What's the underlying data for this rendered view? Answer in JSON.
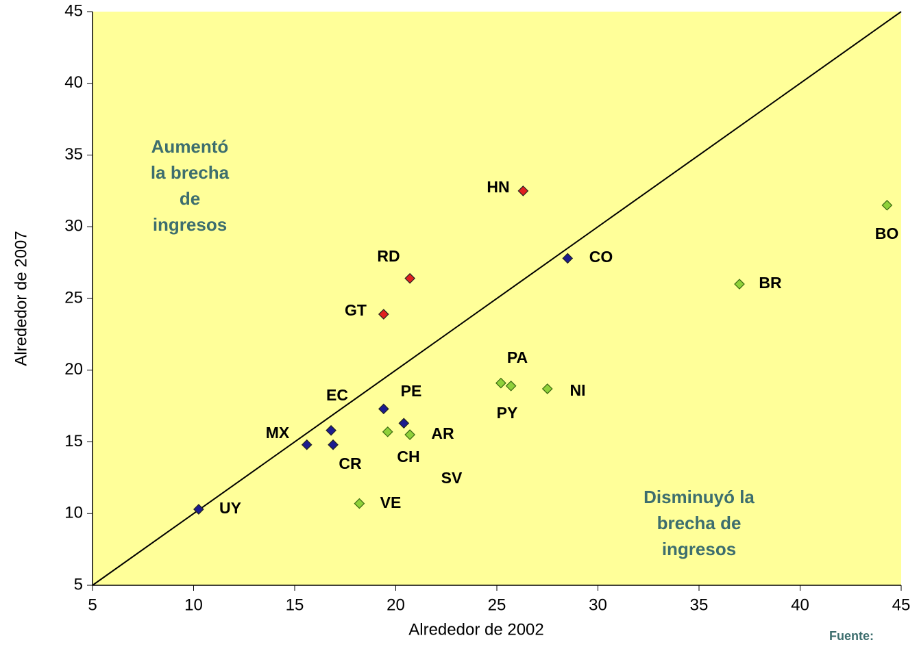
{
  "chart_data": {
    "type": "scatter",
    "xlabel": "Alrededor de 2002",
    "ylabel": "Alrededor de 2007",
    "xlim": [
      5,
      45
    ],
    "ylim": [
      5,
      45
    ],
    "xticks": [
      5,
      10,
      15,
      20,
      25,
      30,
      35,
      40,
      45
    ],
    "yticks": [
      5,
      10,
      15,
      20,
      25,
      30,
      35,
      40,
      45
    ],
    "series": [
      {
        "color": "#1c1c8f",
        "x": [
          10.25,
          15.6,
          16.9,
          16.8,
          19.4,
          20.4,
          28.5
        ],
        "values": [
          10.3,
          14.8,
          14.8,
          15.8,
          17.3,
          16.3,
          27.8
        ],
        "labels": [
          "UY",
          "MX",
          "CR",
          "EC",
          "PE",
          "SV",
          "CO"
        ]
      },
      {
        "color": "#e02020",
        "x": [
          26.3,
          20.7,
          19.4
        ],
        "values": [
          32.5,
          26.4,
          23.9
        ],
        "labels": [
          "HN",
          "RD",
          "GT"
        ]
      },
      {
        "color": "#8fd13a",
        "x": [
          19.6,
          20.7,
          18.2,
          25.2,
          25.7,
          27.5,
          37.0,
          44.3
        ],
        "values": [
          15.7,
          15.5,
          10.7,
          19.1,
          18.9,
          18.7,
          26.0,
          31.5
        ],
        "labels": [
          "CH",
          "AR",
          "VE",
          "PA",
          "PY",
          "NI",
          "BR",
          "BO"
        ]
      }
    ],
    "annotations": [
      [
        "Aumentó",
        "la brecha",
        "de",
        "ingresos"
      ],
      [
        "Disminuyó la",
        "brecha de",
        "ingresos"
      ]
    ],
    "source": "Fuente:"
  }
}
